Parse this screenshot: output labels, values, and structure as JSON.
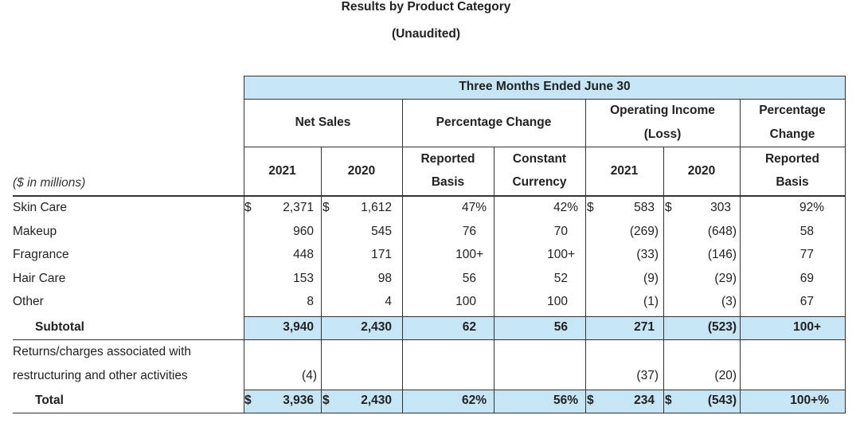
{
  "title": "Results by Product Category",
  "subtitle": "(Unaudited)",
  "period_header": "Three Months Ended June 30",
  "units_label": "($ in millions)",
  "groups": {
    "net_sales": "Net Sales",
    "pct_change": "Percentage Change",
    "op_income_1": "Operating Income",
    "op_income_2": "(Loss)",
    "pct_change2_1": "Percentage",
    "pct_change2_2": "Change"
  },
  "subheads": {
    "ns_2021": "2021",
    "ns_2020": "2020",
    "reported_1": "Reported",
    "reported_2": "Basis",
    "constant_1": "Constant",
    "constant_2": "Currency",
    "oi_2021": "2021",
    "oi_2020": "2020",
    "reported2_1": "Reported",
    "reported2_2": "Basis"
  },
  "currency_symbol": "$",
  "rows": [
    {
      "label": "Skin Care",
      "ns2021": "2,371",
      "ns2020": "1,612",
      "reported": "47%",
      "constant": "42%",
      "oi2021": "583",
      "oi2020": "303",
      "oipct": "92%"
    },
    {
      "label": "Makeup",
      "ns2021": "960",
      "ns2020": "545",
      "reported": "76",
      "constant": "70",
      "oi2021": "(269)",
      "oi2020": "(648)",
      "oipct": "58"
    },
    {
      "label": "Fragrance",
      "ns2021": "448",
      "ns2020": "171",
      "reported": "100+",
      "constant": "100+",
      "oi2021": "(33)",
      "oi2020": "(146)",
      "oipct": "77"
    },
    {
      "label": "Hair Care",
      "ns2021": "153",
      "ns2020": "98",
      "reported": "56",
      "constant": "52",
      "oi2021": "(9)",
      "oi2020": "(29)",
      "oipct": "69"
    },
    {
      "label": "Other",
      "ns2021": "8",
      "ns2020": "4",
      "reported": "100",
      "constant": "100",
      "oi2021": "(1)",
      "oi2020": "(3)",
      "oipct": "67"
    }
  ],
  "subtotal": {
    "label": "Subtotal",
    "ns2021": "3,940",
    "ns2020": "2,430",
    "reported": "62",
    "constant": "56",
    "oi2021": "271",
    "oi2020": "(523)",
    "oipct": "100+"
  },
  "returns": {
    "label_1": "Returns/charges associated with",
    "label_2": "restructuring and other activities",
    "ns2021": "(4)",
    "oi2021": "(37)",
    "oi2020": "(20)"
  },
  "total": {
    "label": "Total",
    "ns2021": "3,936",
    "ns2020": "2,430",
    "reported": "62%",
    "constant": "56%",
    "oi2021": "234",
    "oi2020": "(543)",
    "oipct": "100+%"
  }
}
